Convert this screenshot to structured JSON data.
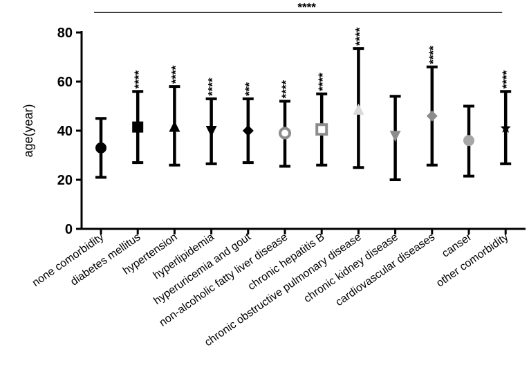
{
  "chart_data": {
    "type": "errorbar",
    "ylabel": "age(year)",
    "ylim": [
      0,
      80
    ],
    "yticks": [
      "0",
      "20",
      "40",
      "60",
      "80"
    ],
    "overall_significance": "****",
    "categories": [
      "none comorbidity",
      "diabetes mellitus",
      "hypertension",
      "hyperlipidemia",
      "hyperuricemia and gout",
      "non-alcoholic fatty liver disease",
      "chronic hepatitis B",
      "chronic obstructive pulmonary disease",
      "chronic kidney disease",
      "cardiovascular diseases",
      "canser",
      "other comorbidity"
    ],
    "series": [
      {
        "mean": [
          33,
          41.5,
          41.5,
          40,
          40,
          39,
          40.5,
          48.5,
          38,
          46,
          36,
          41
        ],
        "lower": [
          21,
          27,
          26,
          26.5,
          27,
          25.5,
          26,
          25,
          20,
          26,
          21.5,
          26.5
        ],
        "upper": [
          45,
          56,
          58,
          53,
          53,
          52,
          55,
          73.5,
          54,
          66,
          50,
          56
        ],
        "markers": [
          "circle",
          "square",
          "triangle-up",
          "triangle-down",
          "diamond",
          "circle-hollow",
          "square-hollow",
          "triangle-up",
          "triangle-down",
          "diamond",
          "circle",
          "star"
        ],
        "marker_colors": [
          "#000000",
          "#000000",
          "#000000",
          "#000000",
          "#000000",
          "#8c8c8c",
          "#8c8c8c",
          "#d9d9d9",
          "#8c8c8c",
          "#8c8c8c",
          "#a6a6a6",
          "#000000"
        ],
        "significance": [
          "",
          "****",
          "****",
          "****",
          "***",
          "****",
          "****",
          "****",
          "",
          "****",
          "",
          "****"
        ]
      }
    ]
  }
}
